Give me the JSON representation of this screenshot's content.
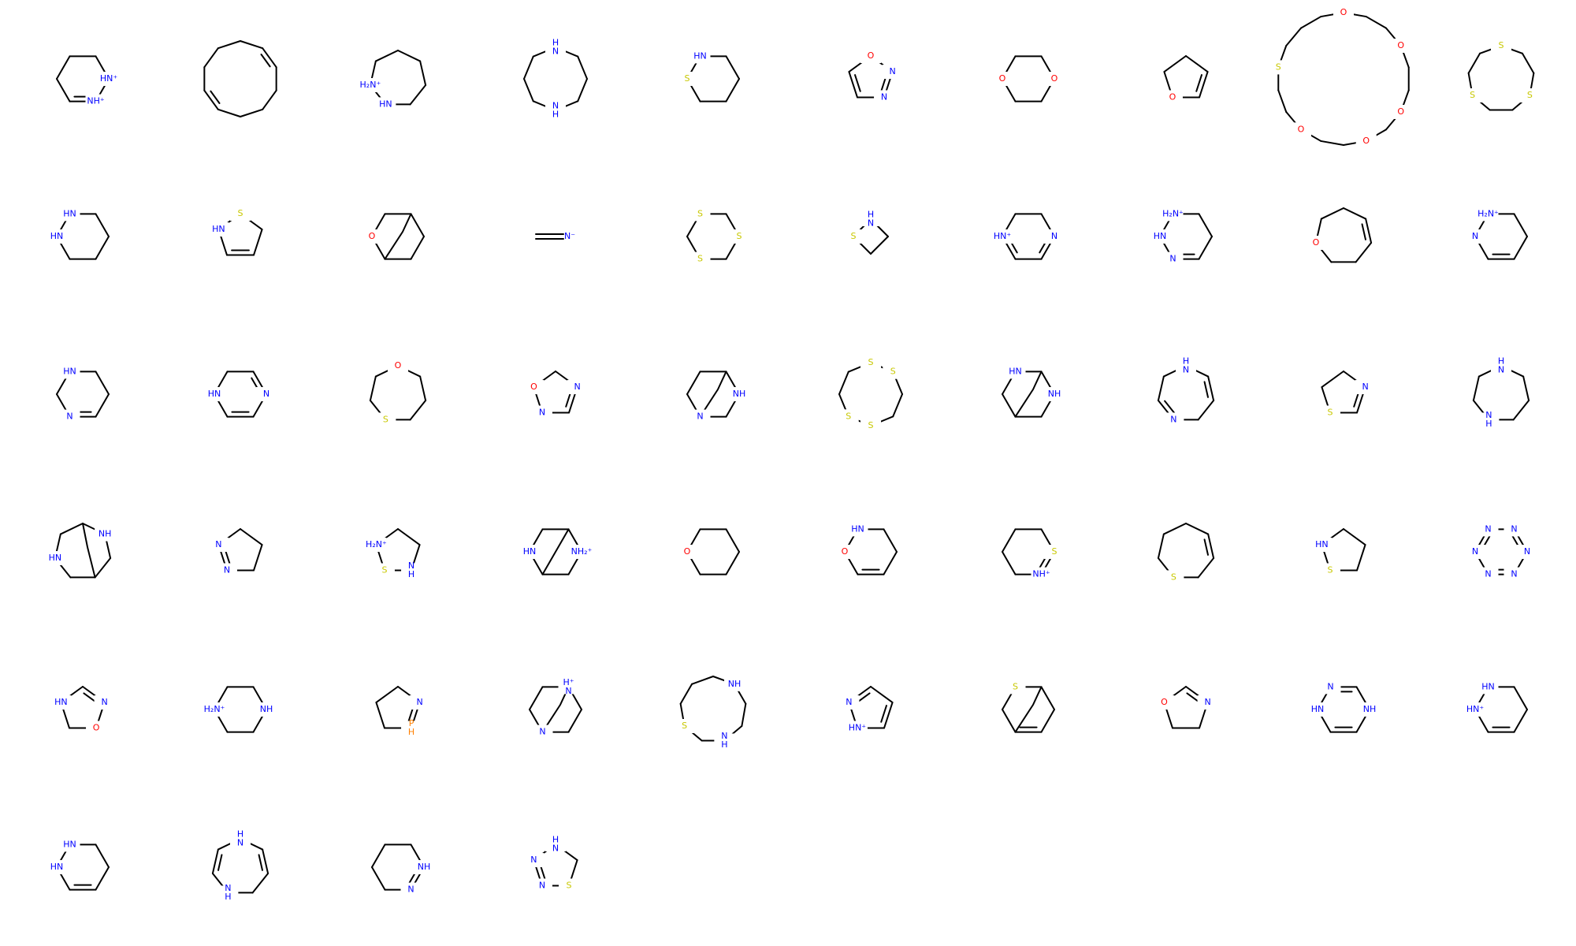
{
  "colors": {
    "C": "#000000",
    "N": "#0000ff",
    "O": "#ff0000",
    "S": "#c8c800",
    "P": "#ff8000",
    "H": "#ff8000"
  },
  "molecules": [
    {
      "ring": 6,
      "labels": {
        "1": "HN⁺",
        "2": "NH⁺"
      },
      "lcol": {
        "1": "N",
        "2": "N"
      },
      "dbl": [
        2
      ]
    },
    {
      "ring": 10,
      "labels": {},
      "lcol": {},
      "dbl": [
        1,
        6
      ]
    },
    {
      "ring": 7,
      "labels": {
        "4": "HN",
        "5": "H₂N⁺"
      },
      "lcol": {
        "4": "N",
        "5": "N"
      },
      "dbl": []
    },
    {
      "ring": 8,
      "labels": {
        "0": "H\nN",
        "4": "N\nH"
      },
      "lcol": {
        "0": "N",
        "4": "N"
      },
      "dbl": []
    },
    {
      "ring": 6,
      "labels": {
        "5": "HN",
        "4": "S"
      },
      "lcol": {
        "5": "N",
        "4": "S"
      },
      "dbl": []
    },
    {
      "ring": 5,
      "labels": {
        "0": "O",
        "1": "N",
        "2": "N"
      },
      "lcol": {
        "0": "O",
        "1": "N",
        "2": "N"
      },
      "dbl": [
        1,
        3
      ]
    },
    {
      "ring": 6,
      "labels": {
        "1": "O",
        "4": "O"
      },
      "lcol": {
        "1": "O",
        "4": "O"
      },
      "dbl": []
    },
    {
      "ring": 5,
      "labels": {
        "3": "O"
      },
      "lcol": {
        "3": "O"
      },
      "dbl": [
        1
      ]
    },
    {
      "ring": 18,
      "labels": {
        "0": "O",
        "3": "O",
        "6": "O",
        "8": "O",
        "11": "O",
        "14": "S"
      },
      "lcol": {
        "0": "O",
        "3": "O",
        "6": "O",
        "8": "O",
        "11": "O",
        "14": "S"
      },
      "dbl": []
    },
    {
      "ring": 9,
      "labels": {
        "0": "S",
        "3": "S",
        "6": "S"
      },
      "lcol": {
        "0": "S",
        "3": "S",
        "6": "S"
      },
      "dbl": []
    },
    {
      "ring": 6,
      "labels": {
        "5": "HN",
        "4": "HN"
      },
      "lcol": {
        "5": "N",
        "4": "N"
      },
      "dbl": []
    },
    {
      "ring": 5,
      "labels": {
        "0": "S",
        "4": "HN"
      },
      "lcol": {
        "0": "S",
        "4": "N"
      },
      "dbl": [
        2
      ]
    },
    {
      "ring": 6,
      "labels": {
        "4": "O"
      },
      "lcol": {
        "4": "O"
      },
      "dbl": [],
      "bridge": true
    },
    {
      "ring": 0,
      "labels": {
        "0": "N⁻"
      },
      "lcol": {
        "0": "N"
      },
      "dbl": [],
      "linear": true
    },
    {
      "ring": 6,
      "labels": {
        "1": "S",
        "3": "S",
        "5": "S"
      },
      "lcol": {
        "1": "S",
        "3": "S",
        "5": "S"
      },
      "dbl": []
    },
    {
      "ring": 4,
      "labels": {
        "0": "H\nN",
        "3": "S"
      },
      "lcol": {
        "0": "N",
        "3": "S"
      },
      "dbl": []
    },
    {
      "ring": 6,
      "labels": {
        "1": "N",
        "4": "HN⁺"
      },
      "lcol": {
        "1": "N",
        "4": "N"
      },
      "dbl": [
        1,
        3
      ]
    },
    {
      "ring": 6,
      "labels": {
        "5": "H₂N⁺",
        "4": "HN",
        "3": "N"
      },
      "lcol": {
        "5": "N",
        "4": "N",
        "3": "N"
      },
      "dbl": [
        2
      ]
    },
    {
      "ring": 7,
      "labels": {
        "5": "O"
      },
      "lcol": {
        "5": "O"
      },
      "dbl": [
        1
      ]
    },
    {
      "ring": 6,
      "labels": {
        "5": "H₂N⁺",
        "4": "N"
      },
      "lcol": {
        "5": "N",
        "4": "N"
      },
      "dbl": [
        2
      ]
    },
    {
      "ring": 6,
      "labels": {
        "5": "HN",
        "3": "N"
      },
      "lcol": {
        "5": "N",
        "3": "N"
      },
      "dbl": [
        2
      ]
    },
    {
      "ring": 6,
      "labels": {
        "1": "N",
        "4": "HN"
      },
      "lcol": {
        "1": "N",
        "4": "N"
      },
      "dbl": [
        0,
        2
      ]
    },
    {
      "ring": 7,
      "labels": {
        "0": "O",
        "4": "S"
      },
      "lcol": {
        "0": "O",
        "4": "S"
      },
      "dbl": []
    },
    {
      "ring": 5,
      "labels": {
        "4": "O",
        "1": "N",
        "3": "N"
      },
      "lcol": {
        "4": "O",
        "1": "N",
        "3": "N"
      },
      "dbl": [
        1
      ]
    },
    {
      "ring": 6,
      "labels": {
        "1": "NH",
        "3": "N"
      },
      "lcol": {
        "1": "N",
        "3": "N"
      },
      "dbl": [],
      "bridge": true
    },
    {
      "ring": 8,
      "labels": {
        "0": "S",
        "1": "S",
        "4": "S",
        "5": "S"
      },
      "lcol": {
        "0": "S",
        "1": "S",
        "4": "S",
        "5": "S"
      },
      "dbl": []
    },
    {
      "ring": 6,
      "labels": {
        "5": "HN",
        "1": "NH"
      },
      "lcol": {
        "5": "N",
        "1": "N"
      },
      "dbl": [],
      "bridge": true
    },
    {
      "ring": 7,
      "labels": {
        "0": "H\nN",
        "4": "N"
      },
      "lcol": {
        "0": "N",
        "4": "N"
      },
      "dbl": [
        1,
        4
      ]
    },
    {
      "ring": 5,
      "labels": {
        "1": "N",
        "3": "S"
      },
      "lcol": {
        "1": "N",
        "3": "S"
      },
      "dbl": [
        1
      ]
    },
    {
      "ring": 7,
      "labels": {
        "0": "H\nN",
        "4": "N\nH"
      },
      "lcol": {
        "0": "N",
        "4": "N"
      },
      "dbl": []
    },
    {
      "ring": 7,
      "labels": {
        "5": "HN",
        "1": "NH"
      },
      "lcol": {
        "5": "N",
        "1": "N"
      },
      "dbl": [],
      "bridge": true
    },
    {
      "ring": 5,
      "labels": {
        "3": "N",
        "4": "N"
      },
      "lcol": {
        "3": "N",
        "4": "N"
      },
      "dbl": [
        3
      ]
    },
    {
      "ring": 5,
      "labels": {
        "4": "H₂N⁺",
        "3": "S",
        "2": "N\nH"
      },
      "lcol": {
        "4": "N",
        "3": "S",
        "2": "N"
      },
      "dbl": []
    },
    {
      "ring": 6,
      "labels": {
        "4": "HN",
        "1": "NH₂⁺"
      },
      "lcol": {
        "4": "N",
        "1": "N"
      },
      "dbl": [],
      "fused": true
    },
    {
      "ring": 6,
      "labels": {
        "4": "O"
      },
      "lcol": {
        "4": "O"
      },
      "dbl": []
    },
    {
      "ring": 6,
      "labels": {
        "5": "HN",
        "4": "O"
      },
      "lcol": {
        "5": "N",
        "4": "O"
      },
      "dbl": [
        2
      ]
    },
    {
      "ring": 6,
      "labels": {
        "1": "S",
        "2": "NH⁺"
      },
      "lcol": {
        "1": "S",
        "2": "N"
      },
      "dbl": [
        1
      ]
    },
    {
      "ring": 7,
      "labels": {
        "4": "S"
      },
      "lcol": {
        "4": "S"
      },
      "dbl": [
        1
      ]
    },
    {
      "ring": 5,
      "labels": {
        "4": "HN",
        "3": "S"
      },
      "lcol": {
        "4": "N",
        "3": "S"
      },
      "dbl": []
    },
    {
      "ring": 6,
      "labels": {
        "0": "N",
        "1": "N",
        "2": "N",
        "3": "N",
        "4": "N",
        "5": "N"
      },
      "lcol": {
        "0": "N",
        "1": "N",
        "2": "N",
        "3": "N",
        "4": "N",
        "5": "N"
      },
      "dbl": [
        0,
        2,
        4
      ]
    },
    {
      "ring": 5,
      "labels": {
        "4": "HN",
        "1": "N",
        "2": "O"
      },
      "lcol": {
        "4": "N",
        "1": "N",
        "2": "O"
      },
      "dbl": [
        0
      ]
    },
    {
      "ring": 6,
      "labels": {
        "1": "NH",
        "4": "H₂N⁺"
      },
      "lcol": {
        "1": "N",
        "4": "N"
      },
      "dbl": []
    },
    {
      "ring": 5,
      "labels": {
        "1": "N",
        "2": "P\nH"
      },
      "lcol": {
        "1": "N",
        "2": "P"
      },
      "dbl": [
        1
      ]
    },
    {
      "ring": 6,
      "labels": {
        "0": "H⁺\nN",
        "3": "N"
      },
      "lcol": {
        "0": "N",
        "3": "N"
      },
      "dbl": [],
      "bridge": true
    },
    {
      "ring": 9,
      "labels": {
        "1": "NH",
        "6": "S",
        "4": "N\nH"
      },
      "lcol": {
        "1": "N",
        "6": "S",
        "4": "N"
      },
      "dbl": []
    },
    {
      "ring": 5,
      "labels": {
        "4": "N",
        "3": "HN⁺"
      },
      "lcol": {
        "4": "N",
        "3": "N"
      },
      "dbl": [
        1,
        4
      ]
    },
    {
      "ring": 6,
      "labels": {
        "5": "S"
      },
      "lcol": {
        "5": "S"
      },
      "dbl": [
        2
      ],
      "bridge": true
    },
    {
      "ring": 5,
      "labels": {
        "4": "O",
        "1": "N"
      },
      "lcol": {
        "4": "O",
        "1": "N"
      },
      "dbl": [
        0
      ]
    },
    {
      "ring": 6,
      "labels": {
        "1": "NH",
        "4": "HN",
        "5": "N"
      },
      "lcol": {
        "1": "N",
        "4": "N",
        "5": "N"
      },
      "dbl": [
        2,
        5
      ]
    },
    {
      "ring": 6,
      "labels": {
        "5": "HN",
        "4": "HN⁺"
      },
      "lcol": {
        "5": "N",
        "4": "N"
      },
      "dbl": [
        2
      ]
    },
    {
      "ring": 6,
      "labels": {
        "5": "HN",
        "4": "HN"
      },
      "lcol": {
        "5": "N",
        "4": "N"
      },
      "dbl": [
        2
      ]
    },
    {
      "ring": 7,
      "labels": {
        "0": "H\nN",
        "4": "N\nH"
      },
      "lcol": {
        "0": "N",
        "4": "N"
      },
      "dbl": [
        1,
        5
      ]
    },
    {
      "ring": 6,
      "labels": {
        "1": "NH",
        "2": "N"
      },
      "lcol": {
        "1": "N",
        "2": "N"
      },
      "dbl": [
        1
      ]
    },
    {
      "ring": 5,
      "labels": {
        "0": "H\nN",
        "4": "N",
        "3": "N",
        "2": "S"
      },
      "lcol": {
        "0": "N",
        "4": "N",
        "3": "N",
        "2": "S"
      },
      "dbl": [
        3
      ]
    }
  ]
}
